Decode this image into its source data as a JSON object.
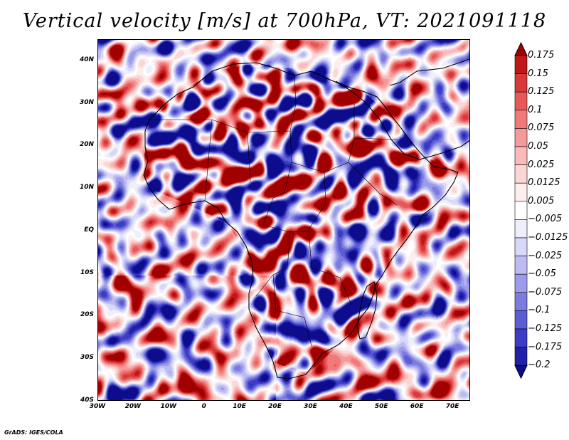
{
  "title": "Vertical velocity [m/s] at 700hPa, VT: 2021091118",
  "credit": "GrADS: IGES/COLA",
  "map": {
    "region": "Africa",
    "lon_range": [
      -30,
      75
    ],
    "lat_range": [
      -40,
      45
    ],
    "lat_labels": [
      "40N",
      "30N",
      "20N",
      "10N",
      "EQ",
      "10S",
      "20S",
      "30S",
      "40S"
    ],
    "lat_values": [
      40,
      30,
      20,
      10,
      0,
      -10,
      -20,
      -30,
      -40
    ],
    "lon_labels": [
      "30W",
      "20W",
      "10W",
      "0",
      "10E",
      "20E",
      "30E",
      "40E",
      "50E",
      "60E",
      "70E"
    ],
    "lon_values": [
      -30,
      -20,
      -10,
      0,
      10,
      20,
      30,
      40,
      50,
      60,
      70
    ]
  },
  "colorbar": {
    "labels": [
      "0.175",
      "0.15",
      "0.125",
      "0.1",
      "0.075",
      "0.05",
      "0.025",
      "0.0125",
      "0.005",
      "−0.005",
      "−0.0125",
      "−0.025",
      "−0.05",
      "−0.075",
      "−0.1",
      "−0.125",
      "−0.175",
      "−0.2"
    ],
    "colors": [
      "#a00000",
      "#c01818",
      "#d83838",
      "#e85858",
      "#f07a7a",
      "#f59a9a",
      "#f8baba",
      "#fbd6d6",
      "#fdeeee",
      "#ffffff",
      "#eeeefc",
      "#d8d8f8",
      "#bcbcf2",
      "#9c9cea",
      "#7c7ce0",
      "#5c5cd4",
      "#3c3cc4",
      "#2020a8",
      "#0c0c8c"
    ]
  }
}
